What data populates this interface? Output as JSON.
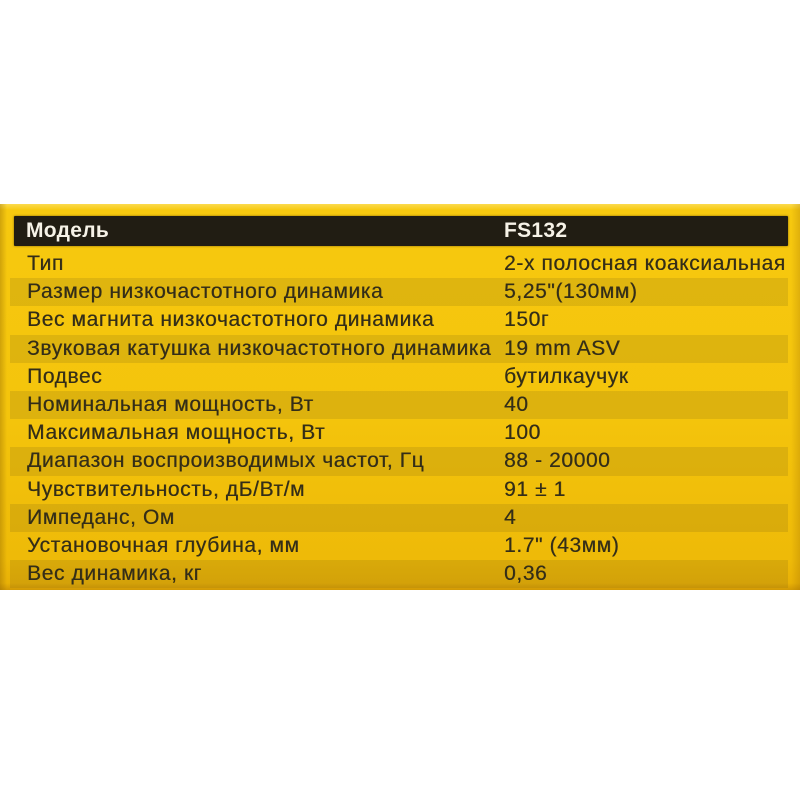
{
  "page": {
    "background_color": "#ffffff"
  },
  "panel": {
    "background_color": "#f4c40c",
    "stripe_color": "#ddb13a",
    "header_bar_color": "#211d13",
    "header_text_color": "#f6f2e7",
    "row_text_color": "#332d18"
  },
  "table": {
    "header": {
      "label": "Модель",
      "value": "FS132"
    },
    "rows": [
      {
        "label": "Тип",
        "value": "2-х полосная коаксиальная"
      },
      {
        "label": "Размер низкочастотного динамика",
        "value": "5,25\"(130мм)"
      },
      {
        "label": "Вес магнита низкочастотного динамика",
        "value": "150г"
      },
      {
        "label": "Звуковая катушка низкочастотного динамика",
        "value": "19 mm ASV"
      },
      {
        "label": "Подвес",
        "value": "бутилкаучук"
      },
      {
        "label": "Номинальная мощность, Вт",
        "value": "40"
      },
      {
        "label": "Максимальная мощность, Вт",
        "value": "100"
      },
      {
        "label": "Диапазон воспроизводимых частот, Гц",
        "value": "88 - 20000"
      },
      {
        "label": "Чувствительность, дБ/Вт/м",
        "value": "91 ± 1"
      },
      {
        "label": "Импеданс, Ом",
        "value": "4"
      },
      {
        "label": "Установочная глубина, мм",
        "value": "1.7\" (43мм)"
      },
      {
        "label": "Вес динамика, кг",
        "value": "0,36"
      }
    ]
  }
}
